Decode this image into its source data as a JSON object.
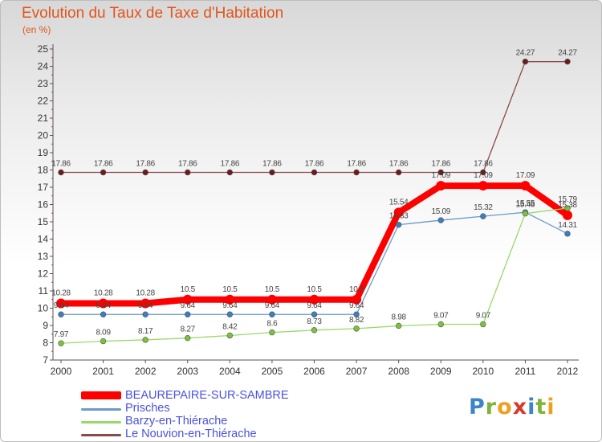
{
  "title": "Evolution du Taux de Taxe d'Habitation",
  "unit_label": "(en %)",
  "logo": {
    "letters": [
      {
        "char": "P",
        "color": "#3a86c8"
      },
      {
        "char": "r",
        "color": "#7fb43a"
      },
      {
        "char": "o",
        "color": "#f0a020"
      },
      {
        "char": "x",
        "color": "#d83a2a"
      },
      {
        "char": "i",
        "color": "#3a86c8"
      },
      {
        "char": "t",
        "color": "#7fb43a"
      },
      {
        "char": "i",
        "color": "#f0a020"
      }
    ]
  },
  "chart_data": {
    "type": "line",
    "title": "Evolution du Taux de Taxe d'Habitation",
    "ylabel": "(en %)",
    "xlabel": "",
    "ylim": [
      7,
      25
    ],
    "yticks": [
      7,
      8,
      9,
      10,
      11,
      12,
      13,
      14,
      15,
      16,
      17,
      18,
      19,
      20,
      21,
      22,
      23,
      24,
      25
    ],
    "categories": [
      "2000",
      "2001",
      "2002",
      "2003",
      "2004",
      "2005",
      "2006",
      "2007",
      "2008",
      "2009",
      "2010",
      "2011",
      "2012"
    ],
    "legend_position": "bottom-left",
    "series": [
      {
        "name": "BEAUREPAIRE-SUR-SAMBRE",
        "color": "#ff0000",
        "bold": true,
        "values": [
          10.28,
          10.28,
          10.28,
          10.5,
          10.5,
          10.5,
          10.5,
          10.5,
          15.54,
          17.09,
          17.09,
          17.09,
          15.38
        ],
        "labels": [
          "10.28",
          "10.28",
          "10.28",
          "10.5",
          "10.5",
          "10.5",
          "10.5",
          "10.5",
          "15.54",
          "17.09",
          "17.09",
          "17.09",
          "15.38"
        ]
      },
      {
        "name": "Prisches",
        "color": "#6a9ac8",
        "point_color": "#3b7fc0",
        "bold": false,
        "values": [
          9.64,
          9.64,
          9.64,
          9.64,
          9.64,
          9.64,
          9.64,
          9.64,
          14.83,
          15.09,
          15.32,
          15.55,
          14.31
        ],
        "labels": [
          "9.64",
          "9.64",
          "9.64",
          "9.64",
          "9.64",
          "9.64",
          "9.64",
          "9.64",
          "14.83",
          "15.09",
          "15.32",
          "15.55",
          "14.31"
        ]
      },
      {
        "name": "Barzy-en-Thiérache",
        "color": "#9ad86a",
        "point_color": "#7cc23a",
        "bold": false,
        "values": [
          7.97,
          8.09,
          8.17,
          8.27,
          8.42,
          8.6,
          8.73,
          8.82,
          8.98,
          9.07,
          9.07,
          15.48,
          15.79
        ],
        "labels": [
          "7.97",
          "8.09",
          "8.17",
          "8.27",
          "8.42",
          "8.6",
          "8.73",
          "8.82",
          "8.98",
          "9.07",
          "9.07",
          "15.48",
          "15.79"
        ]
      },
      {
        "name": "Le Nouvion-en-Thiérache",
        "color": "#8a4a4a",
        "point_color": "#6e1a1a",
        "bold": false,
        "values": [
          17.86,
          17.86,
          17.86,
          17.86,
          17.86,
          17.86,
          17.86,
          17.86,
          17.86,
          17.86,
          17.86,
          24.27,
          24.27
        ],
        "labels": [
          "17.86",
          "17.86",
          "17.86",
          "17.86",
          "17.86",
          "17.86",
          "17.86",
          "17.86",
          "17.86",
          "17.86",
          "17.86",
          "24.27",
          "24.27"
        ]
      }
    ]
  }
}
